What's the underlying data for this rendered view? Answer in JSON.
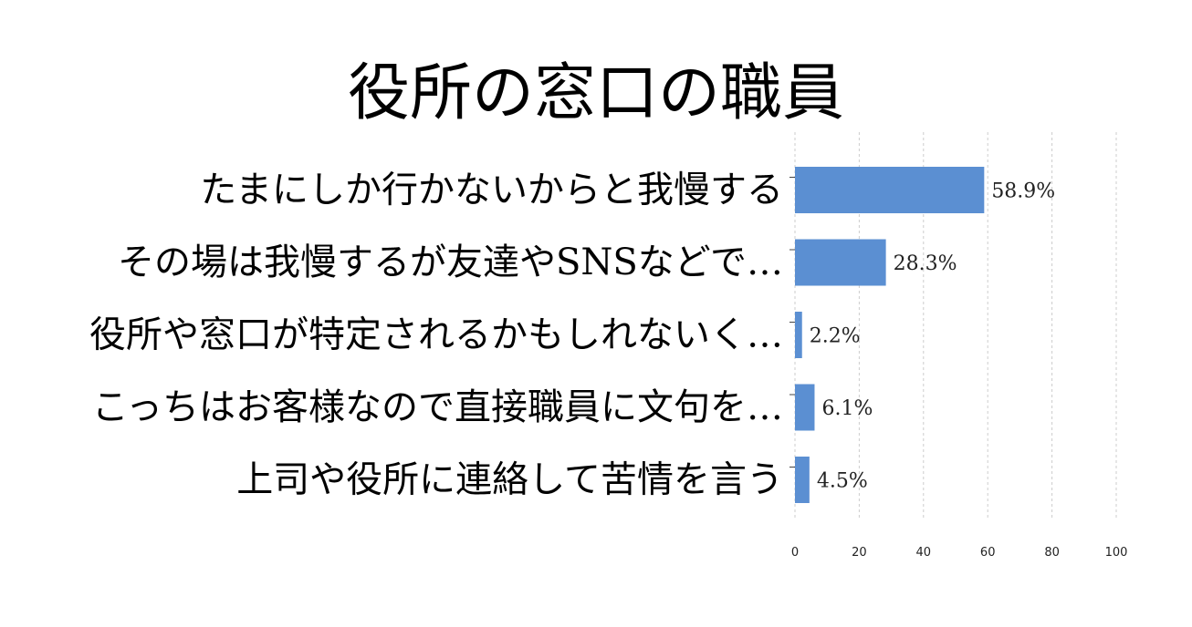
{
  "chart_data": {
    "type": "bar",
    "orientation": "horizontal",
    "title": "役所の窓口の職員",
    "categories": [
      "たまにしか行かないからと我慢する",
      "その場は我慢するが友達やSNSなどで…",
      "役所や窓口が特定されるかもしれないく…",
      "こっちはお客様なので直接職員に文句を…",
      "上司や役所に連絡して苦情を言う"
    ],
    "values": [
      58.9,
      28.3,
      2.2,
      6.1,
      4.5
    ],
    "value_labels": [
      "58.9%",
      "28.3%",
      "2.2%",
      "6.1%",
      "4.5%"
    ],
    "xlim": [
      0,
      100
    ],
    "xticks": [
      "0",
      "20",
      "40",
      "60",
      "80",
      "100"
    ],
    "xlabel": "",
    "ylabel": "",
    "grid": "vertical dashed",
    "bar_color": "#5b8fd2"
  }
}
